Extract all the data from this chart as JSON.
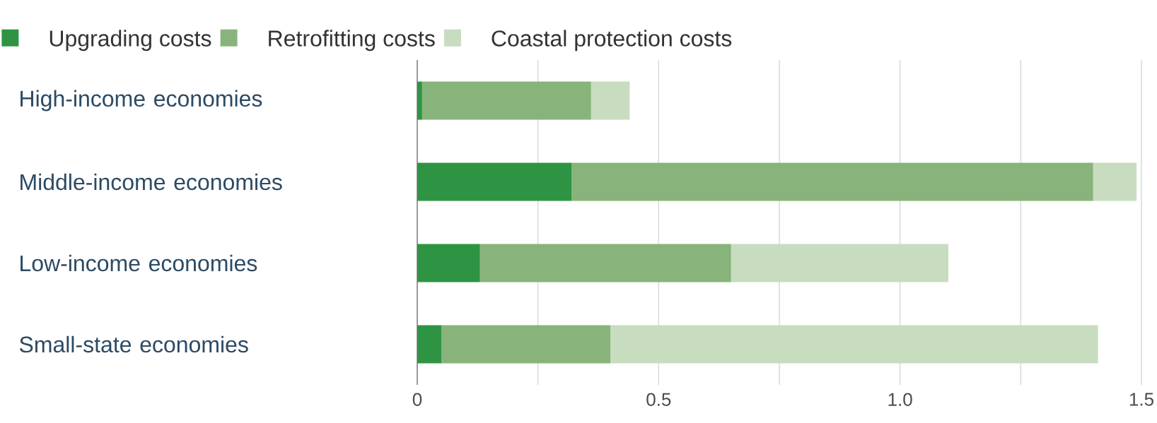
{
  "chart_data": {
    "type": "bar",
    "orientation": "horizontal",
    "stacked": true,
    "categories": [
      "High-income economies",
      "Middle-income economies",
      "Low-income economies",
      "Small-state economies"
    ],
    "series": [
      {
        "name": "Upgrading costs",
        "color": "#2e9444",
        "values": [
          0.01,
          0.32,
          0.13,
          0.05
        ]
      },
      {
        "name": "Retrofitting costs",
        "color": "#88b47c",
        "values": [
          0.35,
          1.08,
          0.52,
          0.35
        ]
      },
      {
        "name": "Coastal protection costs",
        "color": "#c8dcc0",
        "values": [
          0.08,
          0.09,
          0.45,
          1.01
        ]
      }
    ],
    "xlim": [
      0,
      1.5
    ],
    "xticks": [
      0,
      {
        "value": 0.25,
        "label": null
      },
      0.5,
      {
        "value": 0.75,
        "label": null
      },
      {
        "value": 1.0,
        "label": "1.0"
      },
      {
        "value": 1.25,
        "label": null
      },
      1.5
    ],
    "grid": "x",
    "legend": "top left"
  }
}
